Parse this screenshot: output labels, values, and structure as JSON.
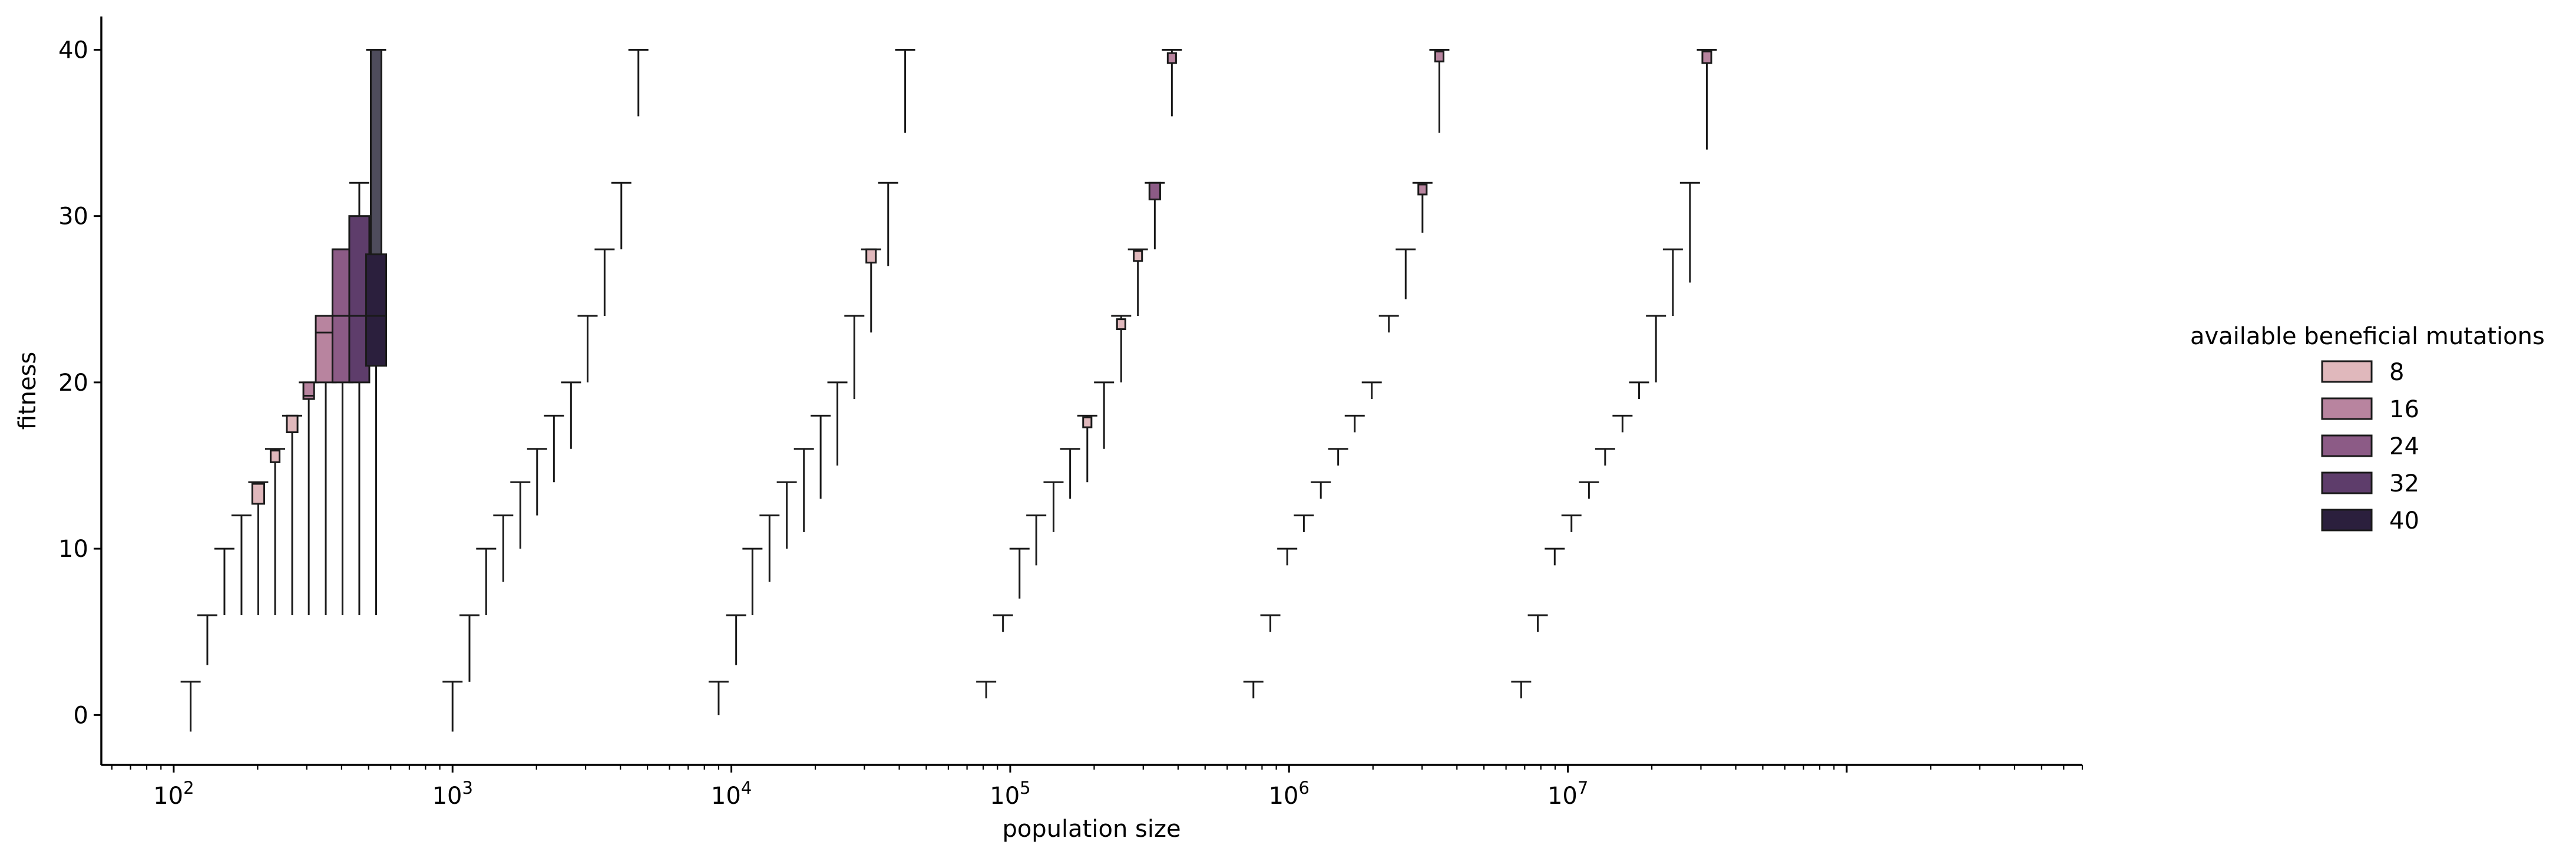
{
  "chart_data": {
    "type": "boxen",
    "xlabel": "population size",
    "ylabel": "fitness",
    "xscale": "log",
    "xlim": [
      55,
      700000000
    ],
    "ylim": [
      -3,
      42
    ],
    "x_ticks": [
      {
        "value": 100,
        "base": "10",
        "exp": "2"
      },
      {
        "value": 1000,
        "base": "10",
        "exp": "3"
      },
      {
        "value": 10000,
        "base": "10",
        "exp": "4"
      },
      {
        "value": 100000,
        "base": "10",
        "exp": "5"
      },
      {
        "value": 1000000,
        "base": "10",
        "exp": "6"
      },
      {
        "value": 10000000,
        "base": "10",
        "exp": "7"
      }
    ],
    "y_ticks": [
      0,
      10,
      20,
      30,
      40
    ],
    "legend": {
      "title": "available beneficial mutations",
      "position": "right",
      "entries": [
        {
          "label": "8",
          "color": "#e0b8bc"
        },
        {
          "label": "16",
          "color": "#b8849f"
        },
        {
          "label": "24",
          "color": "#8c5b86"
        },
        {
          "label": "32",
          "color": "#5e3d6b"
        },
        {
          "label": "40",
          "color": "#2b1f3d"
        }
      ]
    },
    "groups": [
      {
        "x": 115,
        "max": 2,
        "min": -1
      },
      {
        "x": 132,
        "max": 6,
        "min": 3
      },
      {
        "x": 152,
        "max": 10,
        "min": 6
      },
      {
        "x": 175,
        "max": 12,
        "min": 6
      },
      {
        "x": 201,
        "max": 14,
        "min": 6,
        "box": [
          12.7,
          13.9
        ],
        "color": "#e0b8bc"
      },
      {
        "x": 231,
        "max": 16,
        "min": 6,
        "box": [
          15.2,
          15.9
        ],
        "color": "#e0b8bc"
      },
      {
        "x": 266,
        "max": 18,
        "min": 6,
        "box": [
          17.0,
          18.0
        ],
        "color": "#e0b8bc"
      },
      {
        "x": 305,
        "max": 20,
        "min": 6,
        "box": [
          19.0,
          20.0
        ],
        "color": "#b8849f",
        "median": 19.2
      },
      {
        "x": 351,
        "max": 24,
        "min": 6,
        "box": [
          20.0,
          24.0
        ],
        "color": "#b8849f",
        "median": 23.0
      },
      {
        "x": 403,
        "max": 28,
        "min": 6,
        "box": [
          20.0,
          28.0
        ],
        "color": "#8c5b86",
        "median": 24.0
      },
      {
        "x": 463,
        "max": 32,
        "min": 6,
        "box": [
          20.0,
          30.0
        ],
        "color": "#5e3d6b",
        "median": 24.0
      },
      {
        "x": 532,
        "max": 40,
        "min": 6,
        "box": [
          21.0,
          27.7
        ],
        "color": "#2b1f3d",
        "median": 24.0,
        "upper_box": [
          27.7,
          40.0
        ]
      },
      {
        "x": 1000,
        "max": 2,
        "min": -1
      },
      {
        "x": 1150,
        "max": 6,
        "min": 2
      },
      {
        "x": 1320,
        "max": 10,
        "min": 6
      },
      {
        "x": 1520,
        "max": 12,
        "min": 8
      },
      {
        "x": 1750,
        "max": 14,
        "min": 10
      },
      {
        "x": 2010,
        "max": 16,
        "min": 12
      },
      {
        "x": 2310,
        "max": 18,
        "min": 14
      },
      {
        "x": 2660,
        "max": 20,
        "min": 16
      },
      {
        "x": 3050,
        "max": 24,
        "min": 20
      },
      {
        "x": 3510,
        "max": 28,
        "min": 24
      },
      {
        "x": 4030,
        "max": 32,
        "min": 28
      },
      {
        "x": 4640,
        "max": 40,
        "min": 36
      },
      {
        "x": 9000,
        "max": 2,
        "min": 0
      },
      {
        "x": 10400,
        "max": 6,
        "min": 3
      },
      {
        "x": 11900,
        "max": 10,
        "min": 6
      },
      {
        "x": 13700,
        "max": 12,
        "min": 8
      },
      {
        "x": 15800,
        "max": 14,
        "min": 10
      },
      {
        "x": 18200,
        "max": 16,
        "min": 11
      },
      {
        "x": 20900,
        "max": 18,
        "min": 13
      },
      {
        "x": 24000,
        "max": 20,
        "min": 15
      },
      {
        "x": 27600,
        "max": 24,
        "min": 19
      },
      {
        "x": 31700,
        "max": 28,
        "min": 23,
        "box": [
          27.2,
          28.0
        ],
        "color": "#e0b8bc"
      },
      {
        "x": 36500,
        "max": 32,
        "min": 27
      },
      {
        "x": 42000,
        "max": 40,
        "min": 35
      },
      {
        "x": 82000,
        "max": 2,
        "min": 1
      },
      {
        "x": 94200,
        "max": 6,
        "min": 5
      },
      {
        "x": 108000,
        "max": 10,
        "min": 7
      },
      {
        "x": 124000,
        "max": 12,
        "min": 9
      },
      {
        "x": 143000,
        "max": 14,
        "min": 11
      },
      {
        "x": 164000,
        "max": 16,
        "min": 13
      },
      {
        "x": 189000,
        "max": 18,
        "min": 14,
        "box": [
          17.3,
          17.9
        ],
        "color": "#e0b8bc"
      },
      {
        "x": 217000,
        "max": 20,
        "min": 16
      },
      {
        "x": 250000,
        "max": 24,
        "min": 20,
        "box": [
          23.2,
          23.8
        ],
        "color": "#e0b8bc"
      },
      {
        "x": 287000,
        "max": 28,
        "min": 24,
        "box": [
          27.3,
          27.9
        ],
        "color": "#e0b8bc"
      },
      {
        "x": 330000,
        "max": 32,
        "min": 28,
        "box": [
          31.0,
          32.0
        ],
        "color": "#8c5b86"
      },
      {
        "x": 380000,
        "max": 40,
        "min": 36,
        "box": [
          39.2,
          39.8
        ],
        "color": "#b8849f"
      },
      {
        "x": 745000,
        "max": 2,
        "min": 1
      },
      {
        "x": 857000,
        "max": 6,
        "min": 5
      },
      {
        "x": 985000,
        "max": 10,
        "min": 9
      },
      {
        "x": 1130000,
        "max": 12,
        "min": 11
      },
      {
        "x": 1300000,
        "max": 14,
        "min": 13
      },
      {
        "x": 1500000,
        "max": 16,
        "min": 15
      },
      {
        "x": 1720000,
        "max": 18,
        "min": 17
      },
      {
        "x": 1980000,
        "max": 20,
        "min": 19
      },
      {
        "x": 2280000,
        "max": 24,
        "min": 23
      },
      {
        "x": 2620000,
        "max": 28,
        "min": 25
      },
      {
        "x": 3010000,
        "max": 32,
        "min": 29,
        "box": [
          31.3,
          31.9
        ],
        "color": "#b8849f"
      },
      {
        "x": 3460000,
        "max": 40,
        "min": 35,
        "box": [
          39.3,
          39.9
        ],
        "color": "#b8849f"
      },
      {
        "x": 6800000,
        "max": 2,
        "min": 1
      },
      {
        "x": 7800000,
        "max": 6,
        "min": 5
      },
      {
        "x": 8970000,
        "max": 10,
        "min": 9
      },
      {
        "x": 10300000,
        "max": 12,
        "min": 11
      },
      {
        "x": 11900000,
        "max": 14,
        "min": 13
      },
      {
        "x": 13600000,
        "max": 16,
        "min": 15
      },
      {
        "x": 15700000,
        "max": 18,
        "min": 17
      },
      {
        "x": 18000000,
        "max": 20,
        "min": 19
      },
      {
        "x": 20700000,
        "max": 24,
        "min": 20
      },
      {
        "x": 23800000,
        "max": 28,
        "min": 24
      },
      {
        "x": 27400000,
        "max": 32,
        "min": 26
      },
      {
        "x": 31500000,
        "max": 40,
        "min": 34,
        "box": [
          39.2,
          39.9
        ],
        "color": "#b8849f"
      }
    ]
  }
}
